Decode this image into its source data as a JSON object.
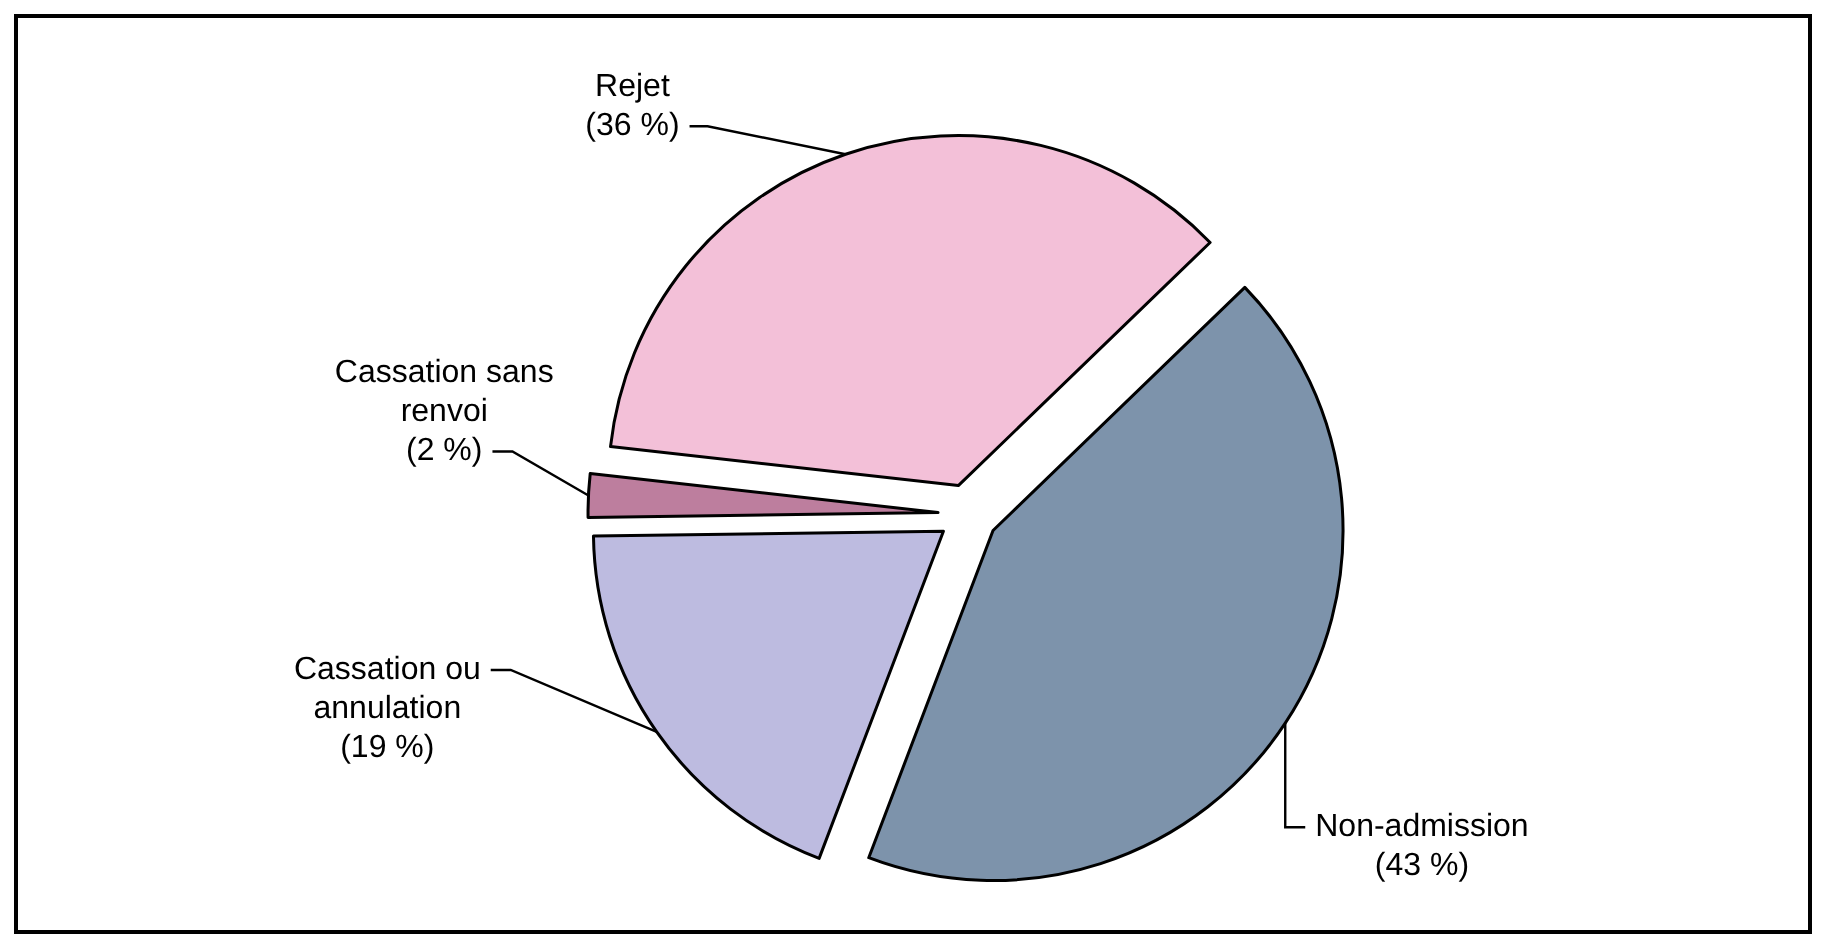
{
  "chart_data": {
    "type": "pie",
    "categories": [
      "Non-admission",
      "Cassation ou annulation",
      "Cassation sans renvoi",
      "Rejet"
    ],
    "values": [
      43,
      19,
      2,
      36
    ],
    "colors": [
      "#7d93ab",
      "#bdbbe0",
      "#bd7e9e",
      "#f3c0d8"
    ],
    "value_labels": [
      "(43 %)",
      "(19 %)",
      "(2 %)",
      "(36 %)"
    ]
  }
}
